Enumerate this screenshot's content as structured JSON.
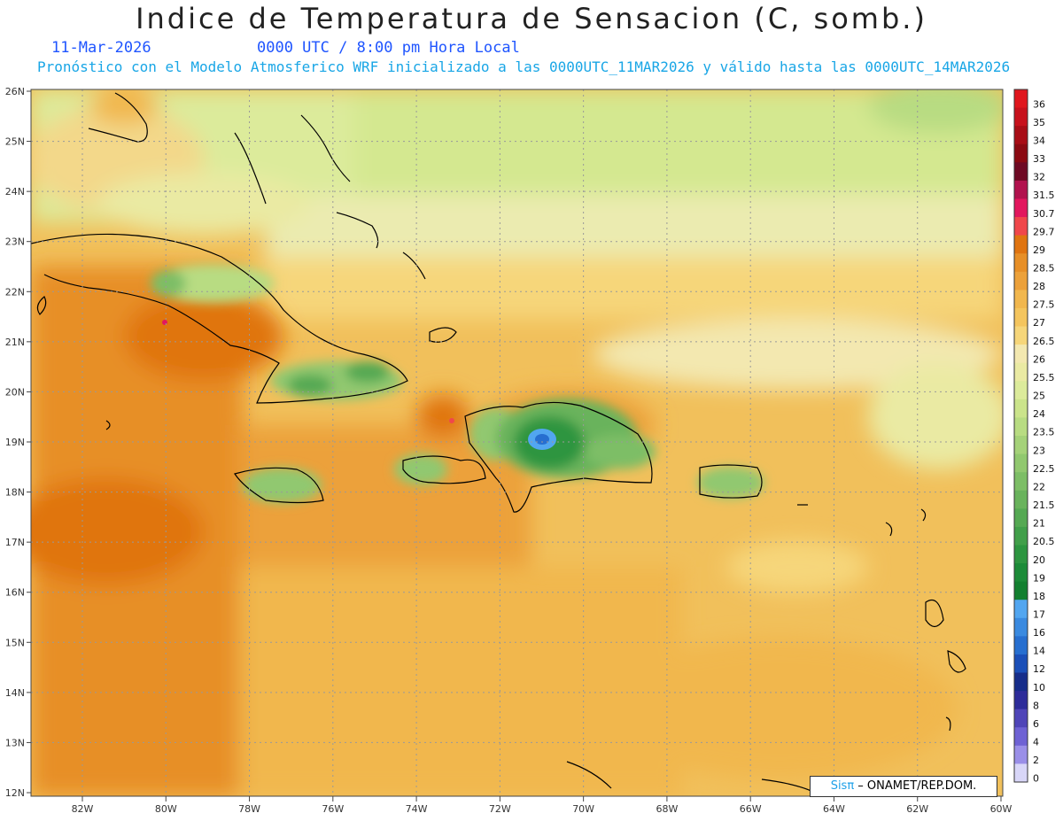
{
  "header": {
    "title": "Indice de Temperatura de Sensacion (C, somb.)",
    "date": "11-Mar-2026",
    "time": "0000 UTC / 8:00 pm Hora Local",
    "description": "Pronóstico con el Modelo Atmosferico WRF inicializado a las 0000UTC_11MAR2026 y válido hasta las  0000UTC_14MAR2026"
  },
  "map": {
    "lon_labels": [
      "82W",
      "80W",
      "78W",
      "76W",
      "74W",
      "72W",
      "70W",
      "68W",
      "66W",
      "64W",
      "62W",
      "60W"
    ],
    "lat_labels": [
      "26N",
      "25N",
      "24N",
      "23N",
      "22N",
      "21N",
      "20N",
      "19N",
      "18N",
      "17N",
      "16N",
      "15N",
      "14N",
      "13N",
      "12N"
    ]
  },
  "colorbar": {
    "labels": [
      "36",
      "35",
      "34",
      "33",
      "32",
      "31.5",
      "30.7",
      "29.7",
      "29",
      "28.5",
      "28",
      "27.5",
      "27",
      "26.5",
      "26",
      "25.5",
      "25",
      "24",
      "23.5",
      "23",
      "22.5",
      "22",
      "21.5",
      "21",
      "20.5",
      "20",
      "19",
      "18",
      "17",
      "16",
      "14",
      "12",
      "10",
      "8",
      "6",
      "4",
      "2",
      "0"
    ],
    "colors": [
      "#e0161d",
      "#c7111c",
      "#a80d16",
      "#8b0a12",
      "#6e0a24",
      "#b1124e",
      "#e2175e",
      "#f0474b",
      "#e07410",
      "#e78f27",
      "#eca13a",
      "#f1b74e",
      "#f4c55e",
      "#f6d67a",
      "#f3e8b0",
      "#eaeaa3",
      "#dceb9b",
      "#cbe48b",
      "#b8dc82",
      "#a5d279",
      "#91c86f",
      "#7dbe66",
      "#69b35c",
      "#55a953",
      "#419f4a",
      "#2d9540",
      "#1c8b38",
      "#138030",
      "#52a6f0",
      "#3a8ae0",
      "#276fd0",
      "#1b4fb8",
      "#162d8a",
      "#2d2c9a",
      "#4f45b8",
      "#6e62d4",
      "#9a8fe8",
      "#d8d6f8"
    ]
  },
  "credit": {
    "brand": "Sisπ",
    "text": " – ONAMET/REP.DOM."
  }
}
